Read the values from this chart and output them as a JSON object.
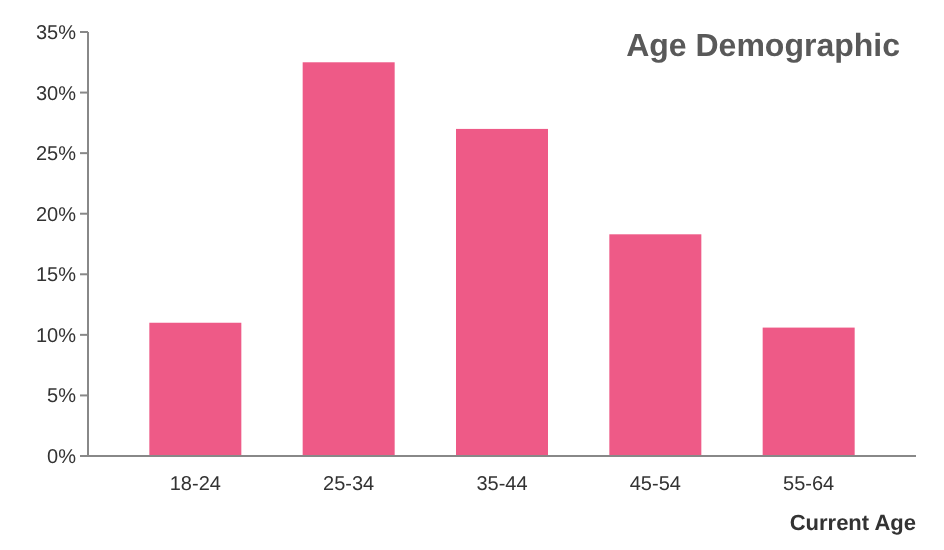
{
  "chart_data": {
    "type": "bar",
    "title": "Age Demographic",
    "xlabel": "Current Age",
    "categories": [
      "18-24",
      "25-34",
      "35-44",
      "45-54",
      "55-64"
    ],
    "values": [
      11,
      32.5,
      27,
      18.3,
      10.6
    ],
    "color": "#ee5a87",
    "ylim": [
      0,
      35
    ],
    "yticks": [
      {
        "value": 0,
        "label": "0%"
      },
      {
        "value": 5,
        "label": "5%"
      },
      {
        "value": 10,
        "label": "10%"
      },
      {
        "value": 15,
        "label": "15%"
      },
      {
        "value": 20,
        "label": "20%"
      },
      {
        "value": 25,
        "label": "25%"
      },
      {
        "value": 30,
        "label": "30%"
      },
      {
        "value": 35,
        "label": "35%"
      }
    ],
    "grid": false
  }
}
